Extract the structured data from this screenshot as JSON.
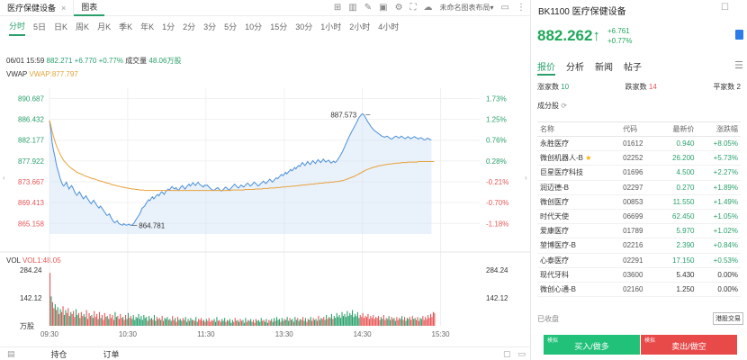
{
  "tabs": {
    "symbol_tab": "医疗保健设备",
    "close_glyph": "×",
    "chart_tab": "图表"
  },
  "toolbar": {
    "layout_name": "未命名图表布局▾"
  },
  "timeframes": [
    "分时",
    "5日",
    "日K",
    "周K",
    "月K",
    "季K",
    "年K",
    "1分",
    "2分",
    "3分",
    "5分",
    "10分",
    "15分",
    "30分",
    "1小时",
    "2小时",
    "4小时"
  ],
  "info": {
    "datetime": "06/01 15:59",
    "price": "882.271",
    "change": "+6.770",
    "change_pct": "+0.77%",
    "volume_label": "成交量",
    "volume": "48.06万股"
  },
  "vwap": {
    "label": "VWAP",
    "value": "VWAP:877.797"
  },
  "vol": {
    "label": "VOL",
    "value": "VOL1:48.05"
  },
  "chart_data": {
    "type": "line",
    "price_ticks": [
      "890.687",
      "886.432",
      "882.177",
      "877.922",
      "873.667",
      "869.413",
      "865.158"
    ],
    "pct_ticks": [
      "1.73%",
      "1.25%",
      "0.76%",
      "0.28%",
      "-0.21%",
      "-0.70%",
      "-1.18%"
    ],
    "ylim": [
      863.0,
      892.8
    ],
    "prev_close": 875.501,
    "x_ticks": [
      "09:30",
      "10:30",
      "11:30",
      "13:30",
      "14:30",
      "15:30"
    ],
    "x_tick_index": [
      0,
      60,
      120,
      180,
      240,
      300
    ],
    "high_label": "887.573",
    "high_index": 246,
    "high_value": 887.573,
    "low_label": "864.781",
    "low_index": 63,
    "low_value": 864.781,
    "price": [
      886.2,
      884.5,
      881.8,
      880.2,
      879.0,
      877.6,
      876.4,
      875.6,
      874.5,
      873.8,
      873.1,
      872.8,
      873.2,
      873.6,
      872.8,
      872.2,
      872.6,
      872.9,
      872.4,
      871.8,
      871.2,
      870.9,
      871.3,
      871.6,
      871.1,
      870.6,
      870.2,
      870.5,
      870.8,
      870.3,
      869.9,
      869.5,
      869.2,
      869.6,
      869.9,
      869.4,
      869.0,
      868.6,
      868.3,
      868.7,
      868.4,
      868.0,
      867.6,
      867.2,
      866.8,
      866.9,
      867.1,
      866.5,
      866.0,
      865.6,
      865.3,
      865.5,
      865.7,
      865.2,
      865.0,
      864.9,
      864.8,
      865.1,
      864.9,
      864.8,
      864.9,
      865.0,
      864.8,
      864.781,
      865.0,
      865.3,
      865.8,
      866.2,
      866.6,
      867.0,
      867.6,
      868.2,
      868.5,
      868.7,
      869.2,
      869.6,
      870.0,
      869.8,
      870.3,
      870.6,
      870.2,
      870.5,
      870.9,
      871.1,
      870.8,
      871.3,
      871.6,
      871.4,
      871.1,
      871.6,
      871.9,
      872.2,
      872.0,
      872.4,
      872.7,
      872.4,
      872.2,
      872.5,
      872.1,
      871.9,
      872.3,
      872.7,
      872.9,
      872.5,
      872.2,
      872.6,
      872.9,
      873.2,
      872.8,
      873.1,
      873.5,
      873.2,
      872.9,
      873.3,
      873.6,
      873.2,
      873.0,
      872.8,
      872.6,
      873.0,
      872.9,
      873.0,
      872.7,
      872.4,
      872.2,
      872.0,
      871.9,
      872.1,
      872.3,
      872.5,
      872.2,
      871.9,
      871.8,
      872.0,
      872.3,
      872.6,
      872.4,
      872.1,
      872.0,
      872.3,
      872.6,
      872.9,
      873.2,
      872.9,
      872.6,
      872.4,
      872.7,
      873.0,
      872.8,
      872.6,
      872.9,
      873.2,
      873.4,
      873.1,
      872.8,
      873.0,
      873.3,
      873.6,
      873.4,
      873.1,
      872.8,
      873.0,
      873.3,
      873.5,
      873.8,
      873.6,
      873.3,
      873.6,
      873.9,
      874.2,
      873.9,
      873.6,
      873.9,
      874.2,
      874.5,
      874.3,
      874.6,
      874.9,
      875.2,
      874.9,
      875.2,
      875.6,
      875.3,
      875.6,
      875.9,
      876.2,
      875.9,
      876.2,
      876.6,
      876.3,
      876.7,
      877.0,
      876.8,
      877.2,
      877.6,
      877.3,
      877.0,
      877.4,
      877.8,
      877.5,
      877.2,
      877.6,
      878.0,
      877.7,
      877.4,
      877.8,
      878.2,
      877.9,
      877.6,
      877.9,
      878.3,
      878.0,
      877.7,
      877.9,
      878.1,
      877.8,
      877.5,
      877.7,
      877.9,
      877.6,
      877.8,
      878.2,
      878.6,
      879.0,
      879.5,
      880.0,
      880.6,
      881.2,
      881.8,
      882.4,
      883.0,
      883.5,
      884.0,
      884.5,
      885.0,
      885.5,
      886.0,
      886.6,
      887.0,
      887.3,
      887.573,
      887.4,
      887.0,
      886.5,
      886.0,
      885.6,
      885.2,
      884.8,
      884.5,
      884.2,
      884.0,
      883.8,
      883.6,
      883.4,
      883.2,
      883.0,
      882.9,
      882.8,
      882.9,
      883.0,
      882.8,
      882.6,
      882.4,
      882.5,
      882.7,
      882.9,
      883.0,
      882.8,
      882.6,
      882.8,
      883.0,
      882.8,
      882.6,
      882.5,
      882.7,
      882.9,
      882.7,
      882.5,
      882.6,
      882.8,
      882.9,
      882.7,
      882.6,
      882.4,
      882.6,
      882.7,
      882.5,
      882.3,
      882.2,
      882.4,
      882.6,
      882.4,
      882.3,
      882.271
    ],
    "vwap": [
      886.2,
      885.3,
      884.0,
      883.0,
      882.1,
      881.3,
      880.6,
      880.0,
      879.4,
      878.9,
      878.4,
      878.0,
      877.7,
      877.4,
      877.1,
      876.8,
      876.6,
      876.4,
      876.2,
      876.0,
      875.8,
      875.6,
      875.5,
      875.4,
      875.3,
      875.2,
      875.0,
      874.9,
      874.8,
      874.7,
      874.6,
      874.5,
      874.4,
      874.3,
      874.3,
      874.2,
      874.1,
      874.0,
      873.9,
      873.8,
      873.8,
      873.7,
      873.6,
      873.5,
      873.4,
      873.4,
      873.3,
      873.2,
      873.1,
      873.0,
      873.0,
      872.9,
      872.8,
      872.8,
      872.7,
      872.6,
      872.6,
      872.5,
      872.5,
      872.4,
      872.4,
      872.3,
      872.3,
      872.2,
      872.2,
      872.2,
      872.1,
      872.1,
      872.1,
      872.0,
      872.0,
      872.0,
      872.0,
      871.9,
      871.9,
      871.9,
      871.9,
      871.9,
      871.9,
      871.9,
      871.9,
      871.9,
      871.9,
      871.9,
      871.9,
      871.9,
      871.9,
      871.9,
      871.9,
      871.9,
      871.9,
      871.9,
      871.9,
      871.9,
      871.9,
      871.9,
      871.9,
      871.9,
      871.9,
      871.9,
      871.9,
      871.9,
      871.9,
      871.9,
      871.9,
      871.9,
      871.9,
      871.9,
      871.9,
      871.9,
      871.9,
      871.9,
      871.9,
      871.9,
      871.9,
      871.9,
      871.9,
      871.9,
      871.9,
      871.9,
      871.9,
      871.9,
      871.9,
      871.9,
      871.9,
      871.9,
      871.9,
      871.9,
      871.9,
      871.9,
      871.9,
      871.9,
      871.9,
      871.9,
      871.9,
      871.9,
      871.9,
      871.9,
      871.9,
      871.9,
      872.0,
      872.0,
      872.0,
      872.0,
      872.0,
      872.0,
      872.0,
      872.0,
      872.0,
      872.0,
      872.1,
      872.1,
      872.1,
      872.1,
      872.1,
      872.1,
      872.1,
      872.1,
      872.2,
      872.2,
      872.2,
      872.2,
      872.2,
      872.2,
      872.3,
      872.3,
      872.3,
      872.3,
      872.3,
      872.4,
      872.4,
      872.4,
      872.4,
      872.4,
      872.5,
      872.5,
      872.5,
      872.5,
      872.6,
      872.6,
      872.6,
      872.6,
      872.7,
      872.7,
      872.7,
      872.7,
      872.8,
      872.8,
      872.8,
      872.8,
      872.9,
      872.9,
      872.9,
      873.0,
      873.0,
      873.0,
      873.0,
      873.1,
      873.1,
      873.1,
      873.2,
      873.2,
      873.2,
      873.2,
      873.3,
      873.3,
      873.3,
      873.4,
      873.4,
      873.4,
      873.4,
      873.5,
      873.5,
      873.5,
      873.5,
      873.6,
      873.6,
      873.6,
      873.6,
      873.7,
      873.7,
      873.7,
      873.8,
      873.8,
      873.9,
      873.9,
      874.0,
      874.1,
      874.2,
      874.3,
      874.4,
      874.5,
      874.6,
      874.7,
      874.8,
      875.0,
      875.1,
      875.2,
      875.4,
      875.5,
      875.7,
      875.8,
      876.0,
      876.1,
      876.2,
      876.3,
      876.4,
      876.5,
      876.6,
      876.7,
      876.7,
      876.8,
      876.9,
      876.9,
      877.0,
      877.0,
      877.1,
      877.1,
      877.2,
      877.2,
      877.3,
      877.3,
      877.3,
      877.4,
      877.4,
      877.4,
      877.5,
      877.5,
      877.5,
      877.5,
      877.6,
      877.6,
      877.6,
      877.6,
      877.6,
      877.7,
      877.7,
      877.7,
      877.7,
      877.7,
      877.7,
      877.7,
      877.7,
      877.8,
      877.8,
      877.8,
      877.8,
      877.8,
      877.8,
      877.8,
      877.8,
      877.8,
      877.8,
      877.8,
      877.8,
      877.797
    ],
    "vol_ticks": [
      "284.24",
      "142.12",
      "万股"
    ],
    "vol_ylim": [
      0,
      284.24
    ],
    "volume": [
      270,
      150,
      120,
      90,
      110,
      80,
      95,
      60,
      85,
      70,
      100,
      55,
      80,
      65,
      90,
      50,
      70,
      60,
      75,
      45,
      85,
      55,
      65,
      40,
      70,
      50,
      60,
      45,
      80,
      35,
      65,
      50,
      55,
      40,
      75,
      45,
      60,
      35,
      70,
      40,
      55,
      30,
      65,
      45,
      50,
      35,
      60,
      40,
      55,
      30,
      70,
      45,
      50,
      35,
      60,
      40,
      45,
      30,
      55,
      35,
      65,
      40,
      50,
      35,
      55,
      30,
      45,
      40,
      60,
      35,
      50,
      30,
      55,
      40,
      45,
      25,
      50,
      35,
      40,
      30,
      55,
      25,
      45,
      35,
      40,
      30,
      50,
      25,
      40,
      35,
      45,
      30,
      35,
      25,
      50,
      30,
      40,
      20,
      45,
      30,
      35,
      25,
      40,
      30,
      45,
      20,
      35,
      25,
      40,
      30,
      30,
      25,
      45,
      20,
      35,
      30,
      40,
      25,
      30,
      20,
      35,
      25,
      40,
      20,
      30,
      25,
      35,
      20,
      45,
      25,
      30,
      20,
      35,
      25,
      40,
      20,
      30,
      25,
      35,
      15,
      30,
      20,
      40,
      25,
      30,
      20,
      35,
      25,
      30,
      15,
      40,
      20,
      30,
      25,
      35,
      20,
      30,
      15,
      35,
      25,
      30,
      20,
      40,
      25,
      30,
      20,
      35,
      15,
      30,
      25,
      35,
      20,
      40,
      25,
      45,
      30,
      35,
      20,
      40,
      25,
      35,
      30,
      45,
      25,
      40,
      30,
      35,
      20,
      45,
      30,
      40,
      25,
      35,
      30,
      45,
      25,
      40,
      20,
      35,
      30,
      45,
      25,
      40,
      30,
      35,
      25,
      50,
      30,
      40,
      35,
      45,
      30,
      55,
      35,
      45,
      40,
      60,
      35,
      50,
      40,
      65,
      45,
      55,
      40,
      70,
      50,
      60,
      45,
      75,
      50,
      65,
      55,
      80,
      45,
      60,
      50,
      70,
      40,
      55,
      45,
      65,
      40,
      50,
      45,
      60,
      35,
      50,
      40,
      55,
      35,
      45,
      40,
      50,
      30,
      45,
      35,
      55,
      30,
      40,
      35,
      50,
      30,
      45,
      35,
      40,
      25,
      45,
      30,
      40,
      35,
      50,
      30,
      45,
      25,
      40,
      35,
      45,
      30,
      50,
      35,
      40,
      30,
      45,
      25,
      40,
      35,
      50,
      30,
      45,
      35,
      55,
      40,
      60,
      45,
      70,
      65
    ],
    "vol_up": [
      0,
      1,
      0,
      0,
      1,
      0,
      1,
      0,
      1,
      0,
      0,
      1,
      1,
      0,
      0,
      1,
      1,
      0,
      0,
      0,
      1,
      1,
      0,
      1,
      0,
      0,
      1,
      1,
      0,
      0,
      0,
      0,
      1,
      1,
      0,
      0,
      0,
      1,
      0,
      1,
      0,
      0,
      0,
      0,
      1,
      1,
      0,
      0,
      0,
      0,
      1,
      1,
      0,
      0,
      0,
      0,
      1,
      0,
      0,
      1,
      1,
      0,
      0,
      1,
      1,
      1,
      1,
      1,
      1,
      1,
      1,
      1,
      1,
      1,
      1,
      0,
      1,
      0,
      1,
      0,
      1,
      1,
      0,
      1,
      0,
      1,
      0,
      0,
      1,
      1,
      1,
      0,
      1,
      1,
      0,
      0,
      1,
      0,
      0,
      1,
      1,
      1,
      0,
      0,
      1,
      1,
      1,
      0,
      1,
      1,
      0,
      0,
      1,
      1,
      0,
      0,
      0,
      0,
      1,
      0,
      1,
      0,
      0,
      0,
      0,
      0,
      1,
      1,
      1,
      0,
      0,
      0,
      1,
      1,
      1,
      0,
      0,
      1,
      1,
      1,
      1,
      0,
      0,
      0,
      1,
      1,
      0,
      0,
      1,
      1,
      1,
      0,
      0,
      1,
      1,
      1,
      0,
      0,
      0,
      1,
      1,
      1,
      1,
      0,
      0,
      1,
      1,
      1,
      0,
      0,
      1,
      1,
      1,
      0,
      1,
      1,
      1,
      0,
      1,
      1,
      0,
      1,
      1,
      1,
      0,
      1,
      1,
      0,
      1,
      1,
      0,
      1,
      1,
      0,
      0,
      1,
      1,
      0,
      0,
      1,
      1,
      0,
      0,
      1,
      1,
      0,
      0,
      1,
      1,
      0,
      0,
      1,
      1,
      0,
      0,
      1,
      1,
      0,
      1,
      1,
      1,
      1,
      1,
      1,
      1,
      1,
      1,
      1,
      1,
      1,
      1,
      1,
      1,
      1,
      1,
      1,
      1,
      1,
      0,
      0,
      0,
      0,
      0,
      0,
      0,
      0,
      0,
      0,
      0,
      0,
      0,
      0,
      0,
      0,
      1,
      1,
      0,
      0,
      0,
      1,
      1,
      1,
      0,
      0,
      1,
      1,
      0,
      0,
      0,
      1,
      1,
      0,
      0,
      1,
      1,
      1,
      0,
      0,
      0,
      1,
      1,
      0,
      0,
      0,
      1,
      1,
      0,
      0,
      0
    ]
  },
  "bottom": {
    "holdings": "持仓",
    "orders": "订单"
  },
  "right": {
    "title": "BK1100 医疗保健设备",
    "price": "882.262",
    "arrow": "↑",
    "change": "+6.761",
    "change_pct": "+0.77%",
    "tabs": [
      "报价",
      "分析",
      "新闻",
      "帖子"
    ],
    "stats": {
      "up_label": "涨家数",
      "up_value": "10",
      "down_label": "跌家数",
      "down_value": "14",
      "flat_label": "平家数",
      "flat_value": "2"
    },
    "constituents_title": "成分股",
    "headers": {
      "name": "名称",
      "code": "代码",
      "price": "最新价",
      "chg": "涨跌幅"
    },
    "rows": [
      {
        "name": "永胜医疗",
        "code": "01612",
        "price": "0.940",
        "chg": "+8.05%"
      },
      {
        "name": "微创机器人-B",
        "code": "02252",
        "price": "26.200",
        "chg": "+5.73%"
      },
      {
        "name": "巨星医疗科技",
        "code": "01696",
        "price": "4.500",
        "chg": "+2.27%"
      },
      {
        "name": "润迈德-B",
        "code": "02297",
        "price": "0.270",
        "chg": "+1.89%"
      },
      {
        "name": "微创医疗",
        "code": "00853",
        "price": "11.550",
        "chg": "+1.49%"
      },
      {
        "name": "时代天使",
        "code": "06699",
        "price": "62.450",
        "chg": "+1.05%"
      },
      {
        "name": "爱康医疗",
        "code": "01789",
        "price": "5.970",
        "chg": "+1.02%"
      },
      {
        "name": "堃博医疗-B",
        "code": "02216",
        "price": "2.390",
        "chg": "+0.84%"
      },
      {
        "name": "心泰医疗",
        "code": "02291",
        "price": "17.150",
        "chg": "+0.53%"
      },
      {
        "name": "现代牙科",
        "code": "03600",
        "price": "5.430",
        "chg": "0.00%"
      },
      {
        "name": "微创心通-B",
        "code": "02160",
        "price": "1.250",
        "chg": "0.00%"
      }
    ],
    "closed": "已收盘",
    "quote_btn": "港股交易",
    "buy_tag": "模拟",
    "buy_label": "买入/做多",
    "sell_tag": "模拟",
    "sell_label": "卖出/做空"
  }
}
